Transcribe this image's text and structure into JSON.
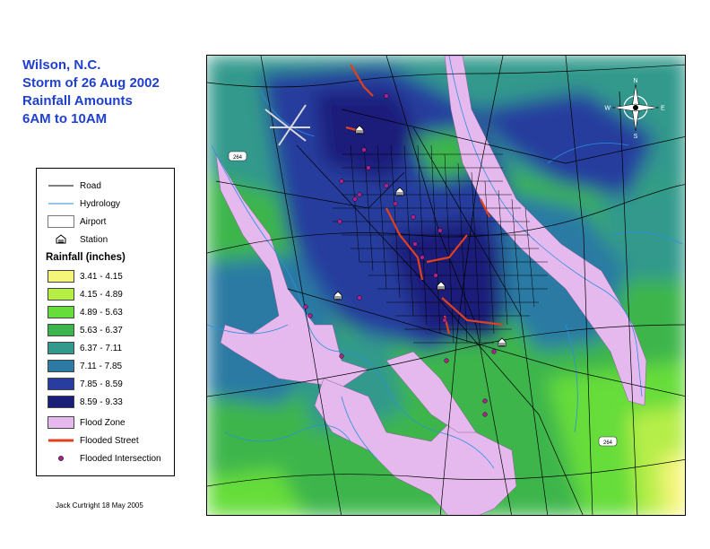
{
  "title": {
    "line1": "Wilson, N.C.",
    "line2": "Storm of 26 Aug 2002",
    "line3": "Rainfall Amounts",
    "line4": "6AM to 10AM"
  },
  "legend": {
    "road": "Road",
    "hydrology": "Hydrology",
    "airport": "Airport",
    "station": "Station",
    "rainfall_heading": "Rainfall (inches)",
    "classes": [
      {
        "label": "3.41 - 4.15",
        "color": "#f5f57a"
      },
      {
        "label": "4.15 - 4.89",
        "color": "#b6ee48"
      },
      {
        "label": "4.89 - 5.63",
        "color": "#66dd3a"
      },
      {
        "label": "5.63 - 6.37",
        "color": "#3cb54c"
      },
      {
        "label": "6.37 - 7.11",
        "color": "#33998c"
      },
      {
        "label": "7.11 - 7.85",
        "color": "#2a7aa3"
      },
      {
        "label": "7.85 - 8.59",
        "color": "#283e9e"
      },
      {
        "label": "8.59 - 9.33",
        "color": "#1a1e7a"
      }
    ],
    "flood_zone": "Flood Zone",
    "flooded_street": "Flooded Street",
    "flooded_intersection": "Flooded Intersection",
    "flood_zone_color": "#e6b9ee",
    "flooded_street_color": "#e0401e",
    "intersection_color": "#b0208a"
  },
  "credit": "Jack Curtright  18 May 2005",
  "map": {
    "compass": {
      "n": "N",
      "s": "S",
      "e": "E",
      "w": "W"
    },
    "route_shields": [
      "264",
      "264"
    ]
  }
}
